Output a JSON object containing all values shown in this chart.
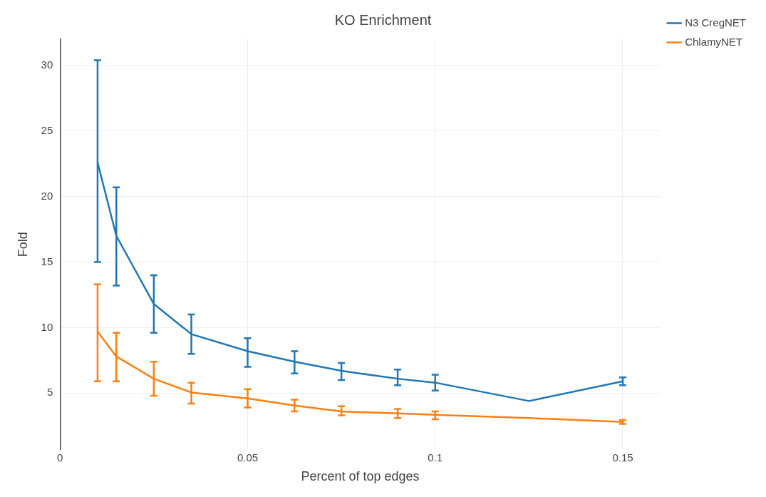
{
  "chart_data": {
    "type": "line",
    "title": "KO Enrichment",
    "xlabel": "Percent of top edges",
    "ylabel": "Fold",
    "x": [
      0.01,
      0.015,
      0.025,
      0.035,
      0.05,
      0.0625,
      0.075,
      0.09,
      0.1,
      0.125,
      0.15
    ],
    "series": [
      {
        "name": "N3 CregNET",
        "color": "#1f77b4",
        "values": [
          22.6,
          17.0,
          11.8,
          9.5,
          8.2,
          7.4,
          6.7,
          6.1,
          5.8,
          4.4,
          5.9
        ],
        "errors": [
          [
            15.0,
            30.4
          ],
          [
            13.2,
            20.7
          ],
          [
            9.6,
            14.0
          ],
          [
            8.0,
            11.0
          ],
          [
            7.0,
            9.2
          ],
          [
            6.5,
            8.2
          ],
          [
            6.0,
            7.3
          ],
          [
            5.6,
            6.8
          ],
          [
            5.2,
            6.4
          ],
          null,
          [
            5.6,
            6.2
          ]
        ]
      },
      {
        "name": "ChlamyNET",
        "color": "#ff7f0e",
        "values": [
          9.7,
          7.8,
          6.1,
          5.05,
          4.6,
          4.05,
          3.6,
          3.45,
          3.35,
          3.1,
          2.8
        ],
        "errors": [
          [
            5.9,
            13.3
          ],
          [
            5.9,
            9.6
          ],
          [
            4.8,
            7.4
          ],
          [
            4.2,
            5.8
          ],
          [
            3.9,
            5.3
          ],
          [
            3.6,
            4.5
          ],
          [
            3.3,
            4.0
          ],
          [
            3.1,
            3.8
          ],
          [
            3.0,
            3.6
          ],
          null,
          [
            2.65,
            2.95
          ]
        ]
      }
    ],
    "xlim": [
      0,
      0.16
    ],
    "ylim": [
      0.7,
      32
    ],
    "xticks": [
      0,
      0.05,
      0.1,
      0.15
    ],
    "yticks": [
      5,
      10,
      15,
      20,
      25,
      30
    ],
    "grid": true,
    "legend": "top right",
    "marker": "none",
    "line_style": "solid"
  }
}
